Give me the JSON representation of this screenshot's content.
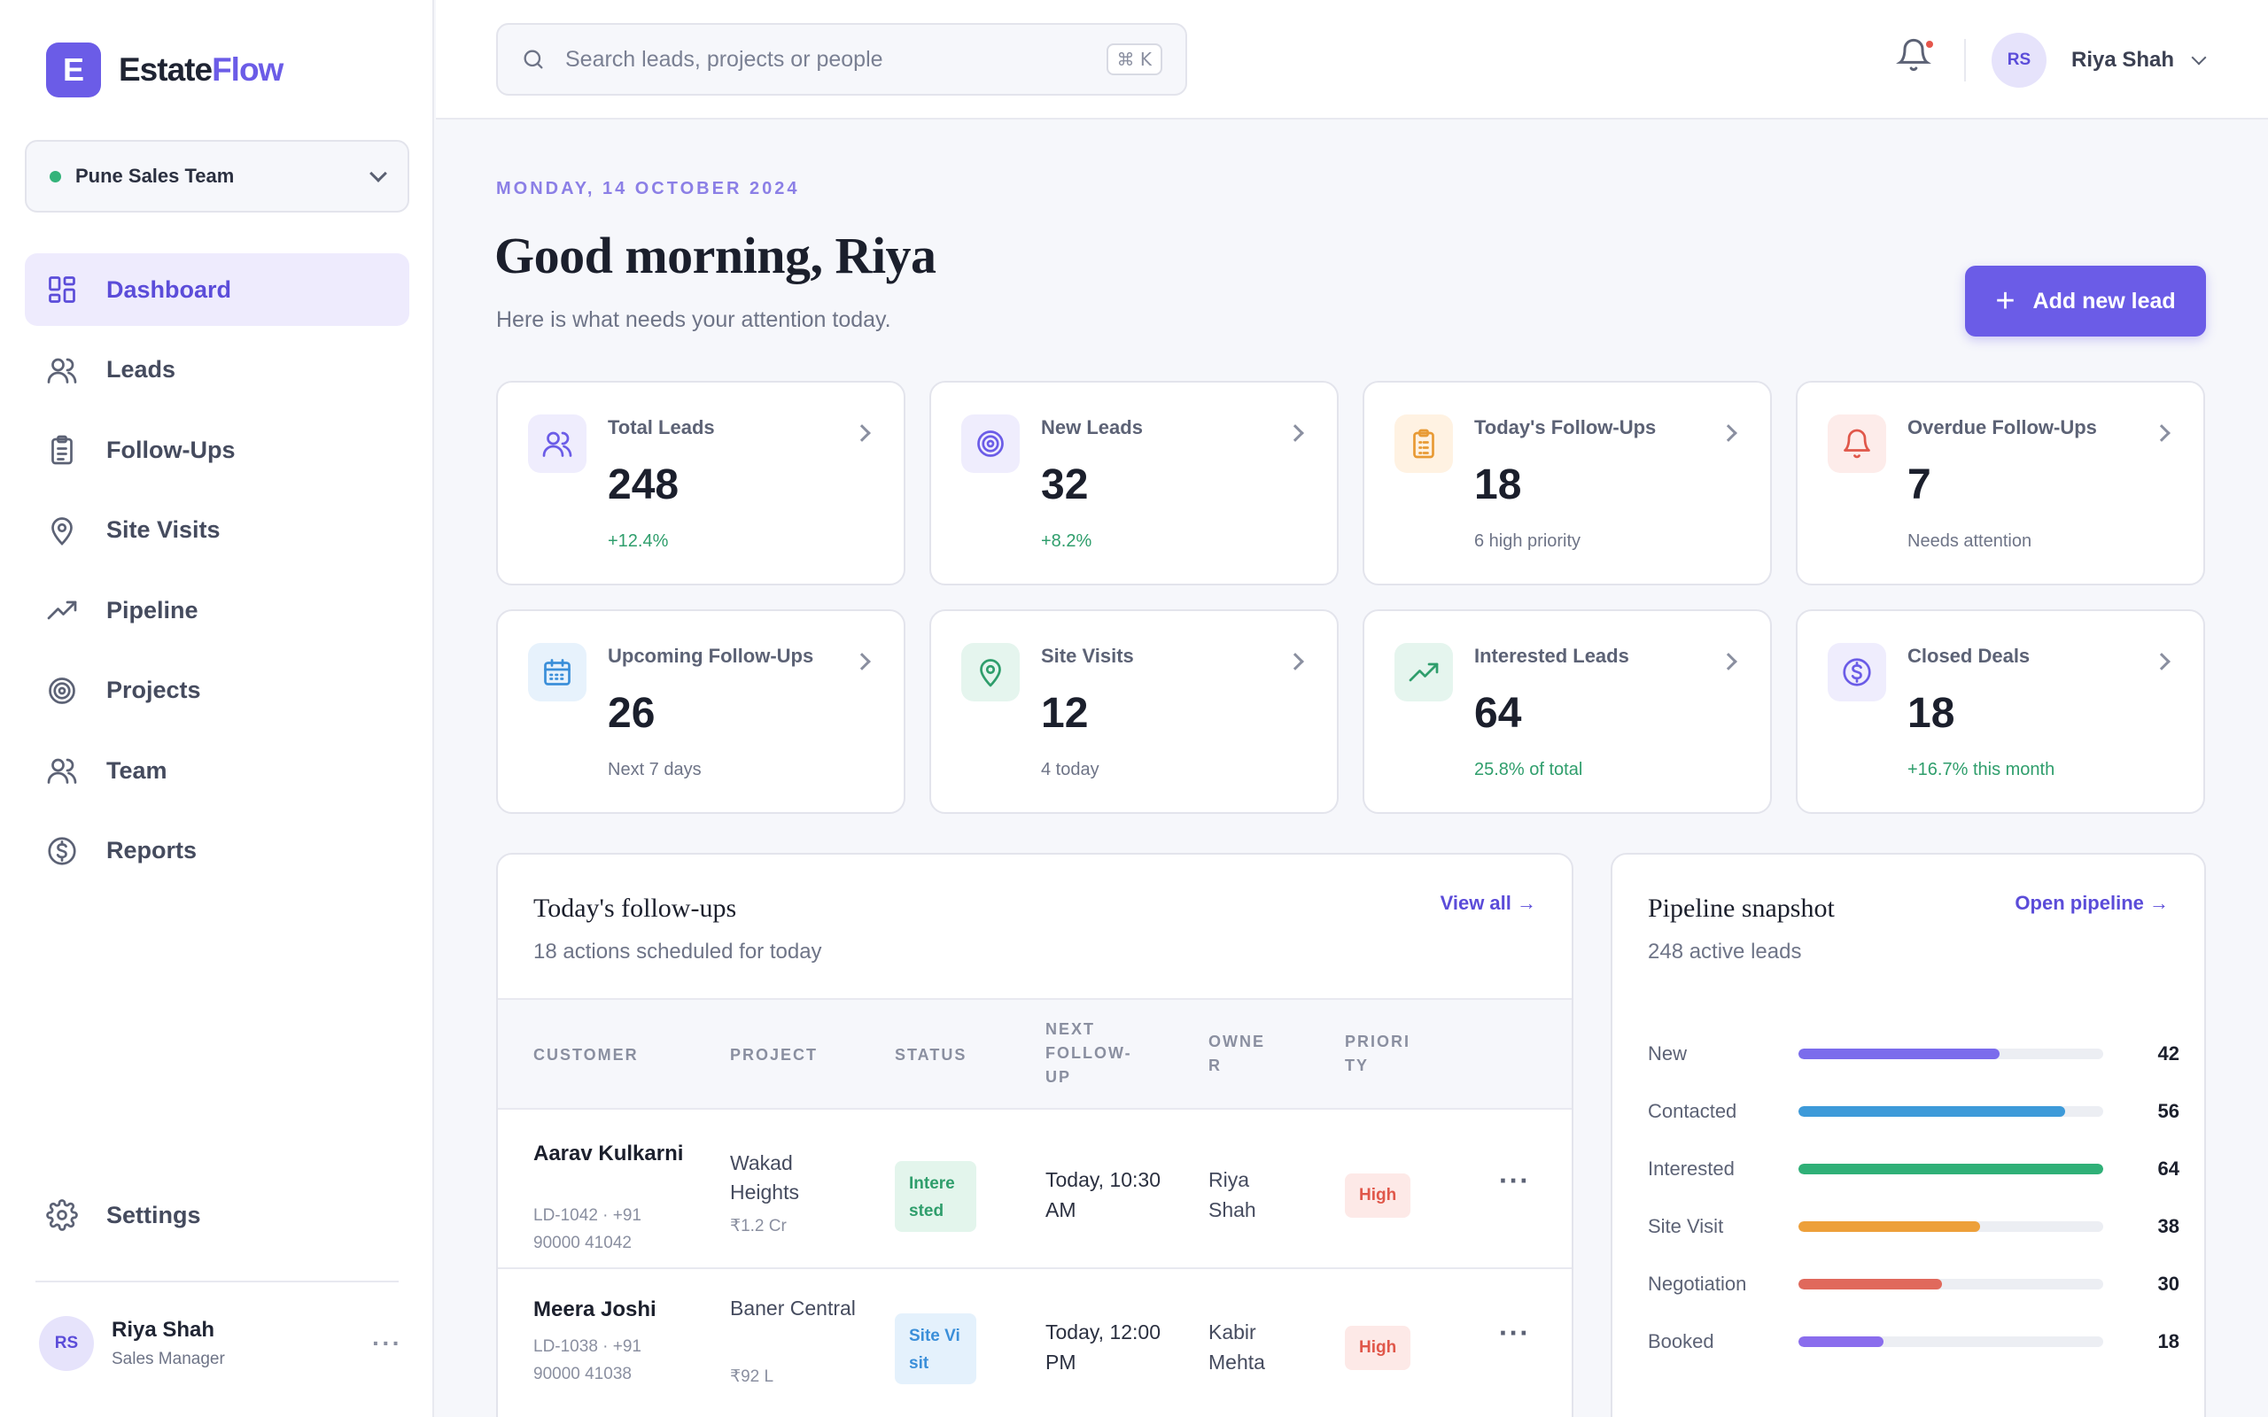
{
  "brand": {
    "logo_letter": "E",
    "name_part1": "Estate",
    "name_part2": "Flow"
  },
  "team_selector": {
    "value": "Pune Sales Team"
  },
  "sidebar": {
    "items": [
      {
        "label": "Dashboard",
        "icon": "dashboard-icon",
        "active": true
      },
      {
        "label": "Leads",
        "icon": "users-icon"
      },
      {
        "label": "Follow-Ups",
        "icon": "clipboard-icon"
      },
      {
        "label": "Site Visits",
        "icon": "map-pin-icon"
      },
      {
        "label": "Pipeline",
        "icon": "trending-up-icon"
      },
      {
        "label": "Projects",
        "icon": "target-icon"
      },
      {
        "label": "Team",
        "icon": "team-icon"
      },
      {
        "label": "Reports",
        "icon": "dollar-icon"
      }
    ],
    "settings_label": "Settings"
  },
  "current_user": {
    "initials": "RS",
    "name": "Riya Shah",
    "role": "Sales Manager"
  },
  "search": {
    "placeholder": "Search leads, projects or people",
    "shortcut": "⌘ K"
  },
  "header": {
    "date": "MONDAY, 14 OCTOBER 2024",
    "greeting": "Good morning, Riya",
    "subtitle": "Here is what needs your attention today.",
    "add_button": "Add new lead"
  },
  "stats": [
    {
      "label": "Total Leads",
      "value": "248",
      "sub": "+12.4%",
      "icon": "users-icon",
      "tint": "#efedfd",
      "color": "#6b5ce7",
      "sub_color": "#2f9e6c"
    },
    {
      "label": "New Leads",
      "value": "32",
      "sub": "+8.2%",
      "icon": "target-icon",
      "tint": "#efedfd",
      "color": "#6b5ce7",
      "sub_color": "#2f9e6c"
    },
    {
      "label": "Today's Follow-Ups",
      "value": "18",
      "sub": "6 high priority",
      "icon": "clipboard-icon",
      "tint": "#fff2e2",
      "color": "#e89a34",
      "sub_color": "#6e7487"
    },
    {
      "label": "Overdue Follow-Ups",
      "value": "7",
      "sub": "Needs attention",
      "icon": "bell-icon",
      "tint": "#fdecea",
      "color": "#e0574a",
      "sub_color": "#6e7487"
    },
    {
      "label": "Upcoming Follow-Ups",
      "value": "26",
      "sub": "Next 7 days",
      "icon": "calendar-icon",
      "tint": "#e7f2fc",
      "color": "#3b8fd9",
      "sub_color": "#6e7487"
    },
    {
      "label": "Site Visits",
      "value": "12",
      "sub": "4 today",
      "icon": "map-pin-icon",
      "tint": "#e5f5ee",
      "color": "#2f9e6c",
      "sub_color": "#6e7487"
    },
    {
      "label": "Interested Leads",
      "value": "64",
      "sub": "25.8% of total",
      "icon": "trending-up-icon",
      "tint": "#e5f5ee",
      "color": "#2f9e6c",
      "sub_color": "#2f9e6c"
    },
    {
      "label": "Closed Deals",
      "value": "18",
      "sub": "+16.7% this month",
      "icon": "dollar-icon",
      "tint": "#efedfd",
      "color": "#6b5ce7",
      "sub_color": "#2f9e6c"
    }
  ],
  "followups": {
    "title": "Today's follow-ups",
    "subtitle": "18 actions scheduled for today",
    "link": "View all →",
    "columns": [
      "CUSTOMER",
      "PROJECT",
      "STATUS",
      "NEXT FOLLOW-UP",
      "OWNER",
      "PRIORITY"
    ],
    "rows": [
      {
        "name": "Aarav Kulkarni",
        "meta": "LD-1042 · +91 90000 41042",
        "project": "Wakad Heights",
        "price": "₹1.2 Cr",
        "status": "Interested",
        "status_bg": "#e3f5ec",
        "status_color": "#2f9e6c",
        "next": "Today, 10:30 AM",
        "owner": "Riya Shah",
        "priority": "High"
      },
      {
        "name": "Meera Joshi",
        "meta": "LD-1038 · +91 90000 41038",
        "project": "Baner Central",
        "price": "₹92 L",
        "status": "Site Visit",
        "status_bg": "#e4f1fc",
        "status_color": "#3b8fd9",
        "next": "Today, 12:00 PM",
        "owner": "Kabir Mehta",
        "priority": "High"
      }
    ]
  },
  "pipeline": {
    "title": "Pipeline snapshot",
    "subtitle": "248 active leads",
    "link": "Open pipeline →",
    "stages": [
      {
        "label": "New",
        "value": "42",
        "fill": 0.66,
        "color": "#7b6cec"
      },
      {
        "label": "Contacted",
        "value": "56",
        "fill": 0.875,
        "color": "#3d9ad9"
      },
      {
        "label": "Interested",
        "value": "64",
        "fill": 1.0,
        "color": "#2fb077"
      },
      {
        "label": "Site Visit",
        "value": "38",
        "fill": 0.595,
        "color": "#eda03a"
      },
      {
        "label": "Negotiation",
        "value": "30",
        "fill": 0.47,
        "color": "#e0695c"
      },
      {
        "label": "Booked",
        "value": "18",
        "fill": 0.28,
        "color": "#8a6ded"
      }
    ]
  }
}
